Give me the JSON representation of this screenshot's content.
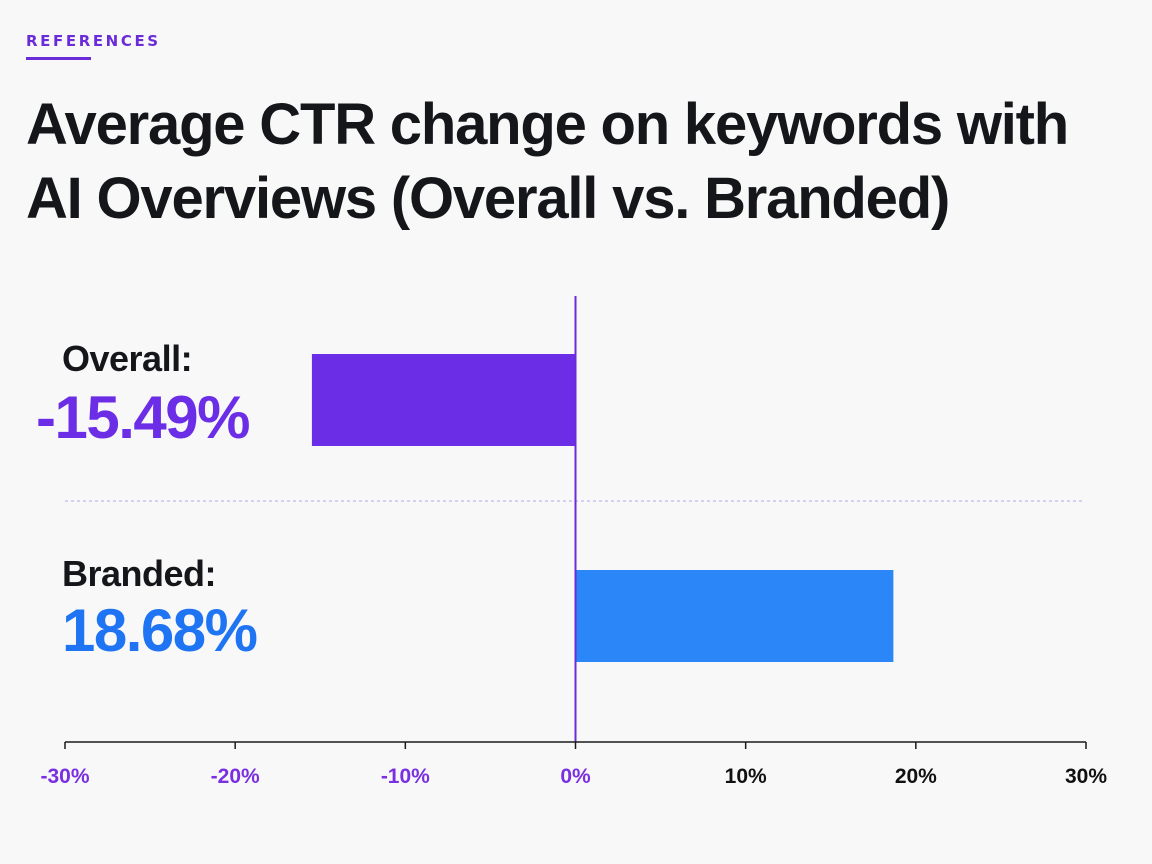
{
  "header": {
    "eyebrow": "REFERENCES",
    "title": "Average CTR change on keywords with AI Overviews (Overall vs. Branded)"
  },
  "colors": {
    "accent": "#6a2bd9",
    "overall": "#6b2ee6",
    "branded": "#2b86f7",
    "text": "#15161a",
    "negative_tick": "#7a2fe0",
    "positive_tick": "#111111"
  },
  "rows": [
    {
      "label": "Overall:",
      "value_text": "-15.49%",
      "color": "#6b2ee6"
    },
    {
      "label": "Branded:",
      "value_text": "18.68%",
      "color": "#1e74f2"
    }
  ],
  "chart_data": {
    "type": "bar",
    "orientation": "horizontal",
    "categories": [
      "Overall",
      "Branded"
    ],
    "values": [
      -15.49,
      18.68
    ],
    "title": "Average CTR change on keywords with AI Overviews (Overall vs. Branded)",
    "xlabel": "",
    "ylabel": "",
    "xlim": [
      -30,
      30
    ],
    "tick_labels": [
      "-30%",
      "-20%",
      "-10%",
      "0%",
      "10%",
      "20%",
      "30%"
    ],
    "grid": false,
    "legend": "none"
  }
}
